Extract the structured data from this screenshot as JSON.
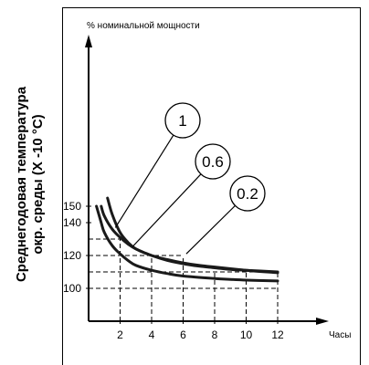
{
  "chart_data": {
    "type": "line",
    "ylabel_top": "% номинальной мощности",
    "xlabel": "Часы",
    "side_title_line1": "Среднегодовая температура",
    "side_title_line2": "окр. среды (X -10 °C)",
    "x_ticks": [
      "2",
      "4",
      "6",
      "8",
      "10",
      "12"
    ],
    "y_ticks": [
      "100",
      "120",
      "140",
      "150"
    ],
    "xlim": [
      0,
      14
    ],
    "ylim": [
      90,
      160
    ],
    "series": [
      {
        "name": "1",
        "x": [
          1.2,
          1.5,
          2,
          2.5,
          3,
          4,
          5,
          6,
          7,
          8,
          9,
          10,
          12
        ],
        "y": [
          155,
          145,
          134,
          128,
          124,
          120,
          117,
          115,
          113.5,
          112.5,
          111.5,
          111,
          110
        ]
      },
      {
        "name": "0.6",
        "x": [
          0.8,
          1,
          1.5,
          2,
          2.5,
          3,
          4,
          5,
          6,
          7,
          8,
          10,
          12
        ],
        "y": [
          150,
          144,
          136,
          131,
          127,
          124,
          120,
          117.5,
          115.5,
          114,
          113,
          111,
          109.5
        ]
      },
      {
        "name": "0.2",
        "x": [
          0.5,
          0.8,
          1,
          1.5,
          2,
          2.5,
          3,
          4,
          5,
          6,
          8,
          10,
          12
        ],
        "y": [
          150,
          140,
          134,
          126,
          121,
          117,
          114,
          111,
          109,
          107.5,
          106,
          105,
          104.5
        ]
      }
    ],
    "guides": {
      "horizontal": [
        {
          "y": 130,
          "x_to": 2
        },
        {
          "y": 120,
          "x_to": 6
        },
        {
          "y": 110,
          "x_to": 12
        },
        {
          "y": 100,
          "x_to": 12
        }
      ],
      "vertical": [
        {
          "x": 2,
          "y_to": 130
        },
        {
          "x": 4,
          "y_to": 120
        },
        {
          "x": 6,
          "y_to": 120
        },
        {
          "x": 8,
          "y_to": 110
        },
        {
          "x": 10,
          "y_to": 110
        },
        {
          "x": 12,
          "y_to": 110
        }
      ]
    },
    "callouts": [
      {
        "label": "1",
        "series": "1",
        "at_x": 1.7,
        "at_y": 137
      },
      {
        "label": "0.6",
        "series": "0.6",
        "at_x": 2.8,
        "at_y": 125.5
      },
      {
        "label": "0.2",
        "series": "0.2",
        "at_x": 6.2,
        "at_y": 121
      }
    ]
  }
}
